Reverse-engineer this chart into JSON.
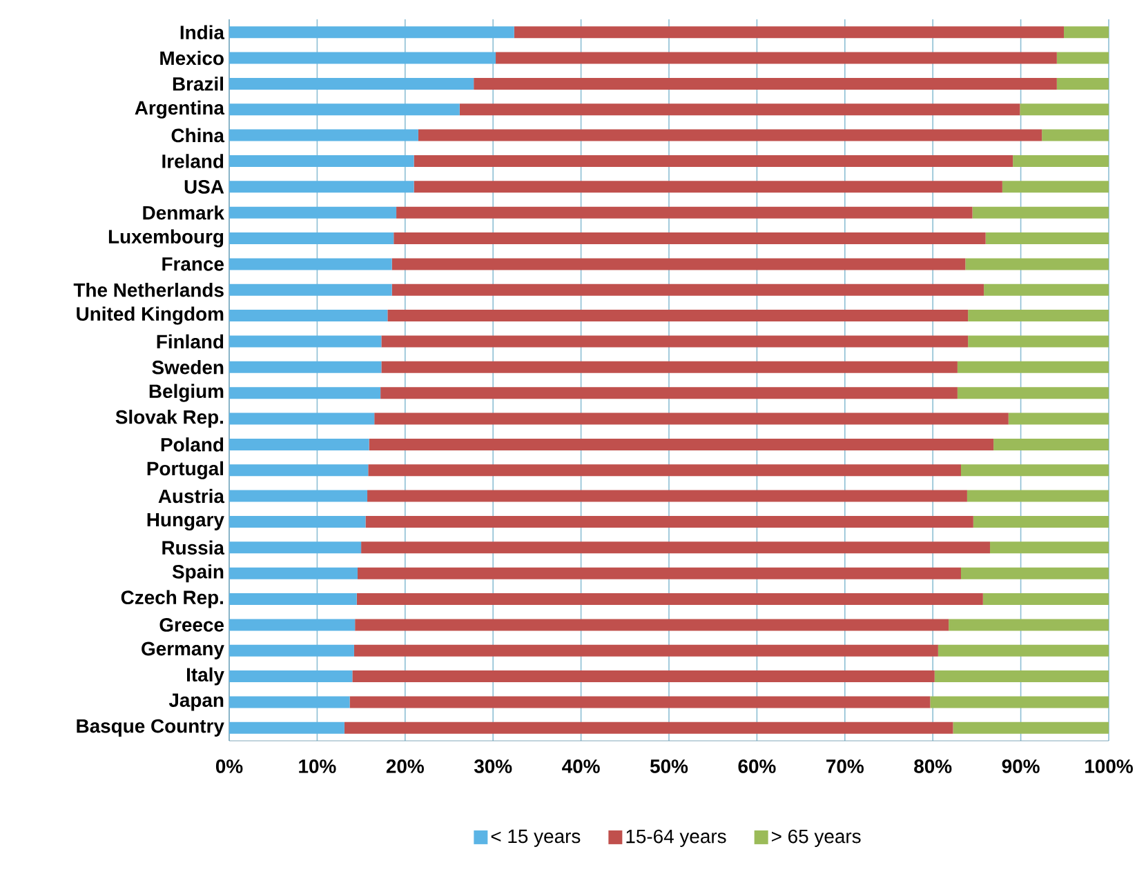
{
  "chart_data": {
    "type": "bar",
    "orientation": "horizontal",
    "stacked": true,
    "categories": [
      "India",
      "Mexico",
      "Brazil",
      "Argentina",
      "China",
      "Ireland",
      "USA",
      "Denmark",
      "Luxembourg",
      "France",
      "The Netherlands",
      "United Kingdom",
      "Finland",
      "Sweden",
      "Belgium",
      "Slovak Rep.",
      "Poland",
      "Portugal",
      "Austria",
      "Hungary",
      "Russia",
      "Spain",
      "Czech Rep.",
      "Greece",
      "Germany",
      "Italy",
      "Japan",
      "Basque Country"
    ],
    "series": [
      {
        "name": "< 15 years",
        "color": "#5bb4e5",
        "values": [
          32.4,
          30.3,
          27.8,
          26.2,
          21.5,
          21.0,
          21.0,
          19.0,
          18.7,
          18.5,
          18.5,
          18.0,
          17.3,
          17.3,
          17.2,
          16.5,
          15.9,
          15.8,
          15.7,
          15.5,
          15.0,
          14.6,
          14.5,
          14.3,
          14.2,
          14.0,
          13.7,
          13.1
        ]
      },
      {
        "name": "15-64 years",
        "color": "#c0504d",
        "values": [
          62.5,
          63.8,
          66.3,
          63.7,
          70.9,
          68.1,
          66.9,
          65.5,
          67.3,
          65.2,
          67.3,
          66.0,
          66.7,
          65.5,
          65.6,
          72.1,
          71.0,
          67.4,
          68.2,
          69.1,
          71.5,
          68.6,
          71.2,
          67.5,
          66.4,
          66.2,
          66.0,
          69.2
        ]
      },
      {
        "name": "> 65 years",
        "color": "#9bbb59",
        "values": [
          5.1,
          5.9,
          5.9,
          10.1,
          7.6,
          10.9,
          12.1,
          15.5,
          14.0,
          16.3,
          14.2,
          16.0,
          16.0,
          17.2,
          17.2,
          11.4,
          13.1,
          16.8,
          16.1,
          15.4,
          13.5,
          16.8,
          14.3,
          18.2,
          19.4,
          19.8,
          20.3,
          17.7
        ]
      }
    ],
    "xlim": [
      0,
      100
    ],
    "xticks": [
      {
        "value": 0,
        "label": "0%"
      },
      {
        "value": 10,
        "label": "10%"
      },
      {
        "value": 20,
        "label": "20%"
      },
      {
        "value": 30,
        "label": "30%"
      },
      {
        "value": 40,
        "label": "40%"
      },
      {
        "value": 50,
        "label": "50%"
      },
      {
        "value": 60,
        "label": "60%"
      },
      {
        "value": 70,
        "label": "70%"
      },
      {
        "value": 80,
        "label": "80%"
      },
      {
        "value": 90,
        "label": "90%"
      },
      {
        "value": 100,
        "label": "100%"
      }
    ],
    "grid": "x",
    "legend": "bottom"
  }
}
